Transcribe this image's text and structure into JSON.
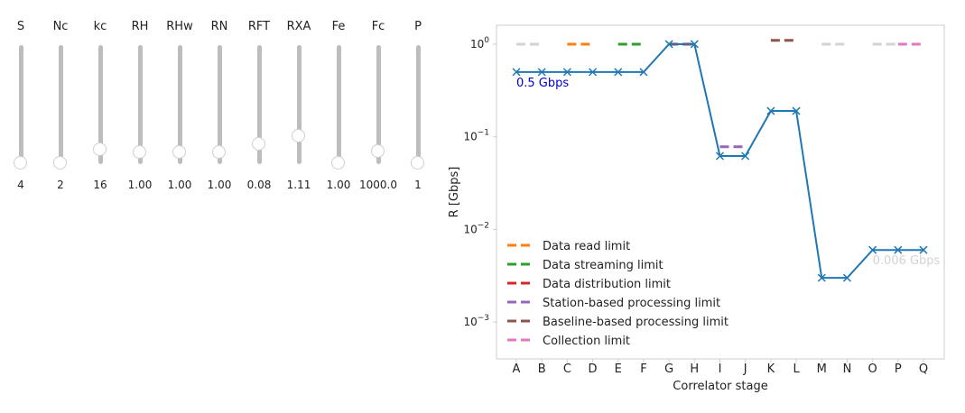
{
  "sliders": [
    {
      "label": "S",
      "value": "4",
      "level": 0.0
    },
    {
      "label": "Nc",
      "value": "2",
      "level": 0.0
    },
    {
      "label": "kc",
      "value": "16",
      "level": 0.11
    },
    {
      "label": "RH",
      "value": "1.00",
      "level": 0.09
    },
    {
      "label": "RHw",
      "value": "1.00",
      "level": 0.09
    },
    {
      "label": "RN",
      "value": "1.00",
      "level": 0.09
    },
    {
      "label": "RFT",
      "value": "0.08",
      "level": 0.16
    },
    {
      "label": "RXA",
      "value": "1.11",
      "level": 0.23
    },
    {
      "label": "Fe",
      "value": "1.00",
      "level": 0.0
    },
    {
      "label": "Fc",
      "value": "1000.0",
      "level": 0.1
    },
    {
      "label": "P",
      "value": "1",
      "level": 0.0
    }
  ],
  "chart_data": {
    "type": "line",
    "xlabel": "Correlator stage",
    "ylabel": "R [Gbps]",
    "yscale": "log",
    "ylim": [
      0.0004,
      1.6
    ],
    "categories": [
      "A",
      "B",
      "C",
      "D",
      "E",
      "F",
      "G",
      "H",
      "I",
      "J",
      "K",
      "L",
      "M",
      "N",
      "O",
      "P",
      "Q"
    ],
    "series": [
      {
        "color": "#1f77b4",
        "values": [
          0.5,
          0.5,
          0.5,
          0.5,
          0.5,
          0.5,
          1.0,
          1.0,
          0.062,
          0.062,
          0.19,
          0.19,
          0.003,
          0.003,
          0.006,
          0.006,
          0.006
        ]
      }
    ],
    "limits": [
      {
        "name": "",
        "color": "#d3d3d3",
        "value": 1.0,
        "stages": [
          0,
          1
        ]
      },
      {
        "name": "Data read limit",
        "color": "#ff7f0e",
        "value": 1.0,
        "stages": [
          2,
          3
        ]
      },
      {
        "name": "Data streaming limit",
        "color": "#2ca02c",
        "value": 1.0,
        "stages": [
          4,
          5
        ]
      },
      {
        "name": "Data distribution limit",
        "color": "#d62728",
        "value": 1.0,
        "stages": [
          6,
          7
        ]
      },
      {
        "name": "Station-based processing limit",
        "color": "#9467bd",
        "value": 0.078,
        "stages": [
          8,
          9
        ]
      },
      {
        "name": "Baseline-based processing limit",
        "color": "#8c564b",
        "value": 1.1,
        "stages": [
          10,
          11
        ]
      },
      {
        "name": "",
        "color": "#d3d3d3",
        "value": 1.0,
        "stages": [
          12,
          13
        ]
      },
      {
        "name": "",
        "color": "#d3d3d3",
        "value": 1.0,
        "stages": [
          14,
          15
        ]
      },
      {
        "name": "Collection limit",
        "color": "#e377c2",
        "value": 1.0,
        "stages": [
          15,
          16
        ]
      }
    ],
    "annotations": [
      {
        "text": "0.5 Gbps",
        "color": "#0000cd",
        "stage": 0,
        "value": 0.5
      },
      {
        "text": "0.006 Gbps",
        "color": "#d3d3d3",
        "stage": 14,
        "value": 0.006
      }
    ],
    "legend_location": "lower-left",
    "grid": false
  }
}
